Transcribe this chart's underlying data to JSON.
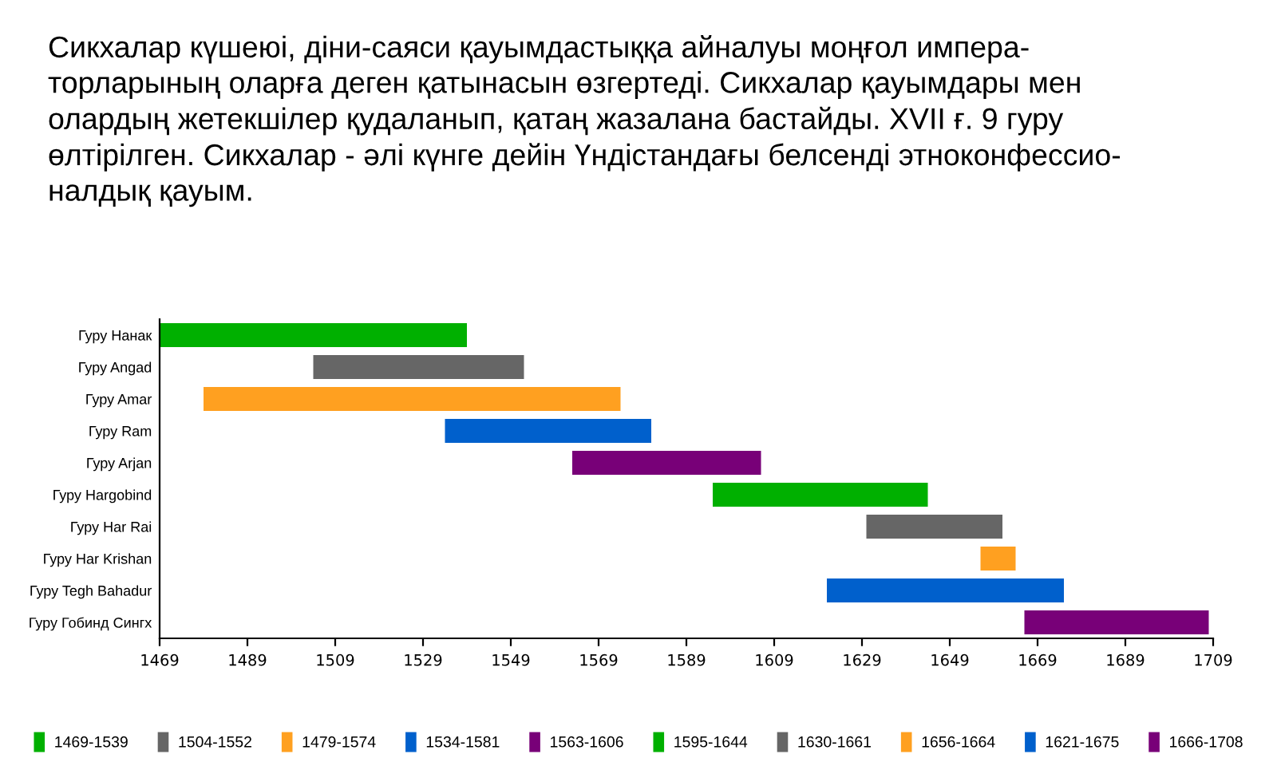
{
  "chart_data": {
    "type": "bar",
    "orientation": "horizontal",
    "title": "Сикхалар күшеюі, діни-саяси қауымдастыққа айналуы моңғол импера-\nторларының оларға деген қатынасын өзгертеді. Сикхалар қауымдары мен\nолардың жетекшілер қудаланып, қатаң жазалана бастайды. XVII ғ. 9 гуру\nөлтірілген. Сикхалар - әлі күнге дейін Үндістандағы белсенді этноконфессио-\nналдық қауым.",
    "categories": [
      "Гуру Нанак",
      "Гуру Angad",
      "Гуру Amar",
      "Гуру Ram",
      "Гуру Arjan",
      "Гуру Hargobind",
      "Гуру Har Rai",
      "Гуру Har Krishan",
      "Гуру Tegh Bahadur",
      "Гуру Гобинд Сингх"
    ],
    "series": [
      {
        "name": "1469-1539",
        "color": "#00b000",
        "base": [
          1469,
          null,
          null,
          null,
          null,
          null,
          null,
          null,
          null,
          null
        ],
        "values": [
          70,
          null,
          null,
          null,
          null,
          null,
          null,
          null,
          null,
          null
        ]
      },
      {
        "name": "1504-1552",
        "color": "#666666",
        "base": [
          null,
          1504,
          null,
          null,
          null,
          null,
          null,
          null,
          null,
          null
        ],
        "values": [
          null,
          48,
          null,
          null,
          null,
          null,
          null,
          null,
          null,
          null
        ]
      },
      {
        "name": "1479-1574",
        "color": "#ffa020",
        "base": [
          null,
          null,
          1479,
          null,
          null,
          null,
          null,
          null,
          null,
          null
        ],
        "values": [
          null,
          null,
          95,
          null,
          null,
          null,
          null,
          null,
          null,
          null
        ]
      },
      {
        "name": "1534-1581",
        "color": "#0060cc",
        "base": [
          null,
          null,
          null,
          1534,
          null,
          null,
          null,
          null,
          null,
          null
        ],
        "values": [
          null,
          null,
          null,
          47,
          null,
          null,
          null,
          null,
          null,
          null
        ]
      },
      {
        "name": "1563-1606",
        "color": "#780078",
        "base": [
          null,
          null,
          null,
          null,
          1563,
          null,
          null,
          null,
          null,
          null
        ],
        "values": [
          null,
          null,
          null,
          null,
          43,
          null,
          null,
          null,
          null,
          null
        ]
      },
      {
        "name": "1595-1644",
        "color": "#00b000",
        "base": [
          null,
          null,
          null,
          null,
          null,
          1595,
          null,
          null,
          null,
          null
        ],
        "values": [
          null,
          null,
          null,
          null,
          null,
          49,
          null,
          null,
          null,
          null
        ]
      },
      {
        "name": "1630-1661",
        "color": "#666666",
        "base": [
          null,
          null,
          null,
          null,
          null,
          null,
          1630,
          null,
          null,
          null
        ],
        "values": [
          null,
          null,
          null,
          null,
          null,
          null,
          31,
          null,
          null,
          null
        ]
      },
      {
        "name": "1656-1664",
        "color": "#ffa020",
        "base": [
          null,
          null,
          null,
          null,
          null,
          null,
          null,
          1656,
          null,
          null
        ],
        "values": [
          null,
          null,
          null,
          null,
          null,
          null,
          null,
          8,
          null,
          null
        ]
      },
      {
        "name": "1621-1675",
        "color": "#0060cc",
        "base": [
          null,
          null,
          null,
          null,
          null,
          null,
          null,
          null,
          1621,
          null
        ],
        "values": [
          null,
          null,
          null,
          null,
          null,
          null,
          null,
          null,
          54,
          null
        ]
      },
      {
        "name": "1666-1708",
        "color": "#780078",
        "base": [
          null,
          null,
          null,
          null,
          null,
          null,
          null,
          null,
          null,
          1666
        ],
        "values": [
          null,
          null,
          null,
          null,
          null,
          null,
          null,
          null,
          null,
          42
        ]
      }
    ],
    "xlim": [
      1469,
      1709
    ],
    "xticks": [
      1469,
      1489,
      1509,
      1529,
      1549,
      1569,
      1589,
      1609,
      1629,
      1649,
      1669,
      1689,
      1709
    ],
    "grid": false,
    "legend": "bottom"
  }
}
